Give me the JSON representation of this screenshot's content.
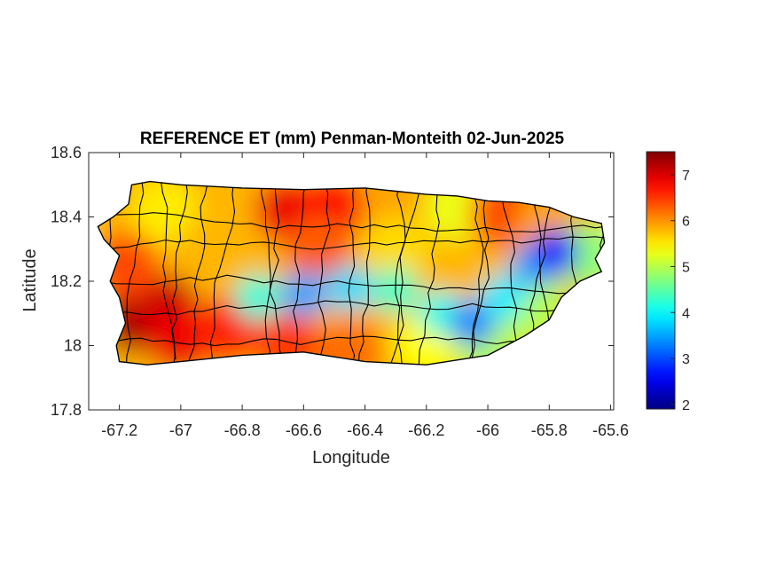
{
  "chart_data": {
    "type": "heatmap",
    "title": "REFERENCE ET (mm) Penman-Monteith 02-Jun-2025",
    "xlabel": "Longitude",
    "ylabel": "Latitude",
    "xlim": [
      -67.3,
      -65.59
    ],
    "ylim": [
      17.8,
      18.6
    ],
    "xticks": [
      -67.2,
      -67,
      -66.8,
      -66.6,
      -66.4,
      -66.2,
      -66,
      -65.8,
      -65.6
    ],
    "xtick_labels": [
      "-67.2",
      "-67",
      "-66.8",
      "-66.6",
      "-66.4",
      "-66.2",
      "-66",
      "-65.8",
      "-65.6"
    ],
    "yticks": [
      17.8,
      18,
      18.2,
      18.4,
      18.6
    ],
    "ytick_labels": [
      "17.8",
      "18",
      "18.2",
      "18.4",
      "18.6"
    ],
    "colorbar": {
      "colormap": "jet",
      "range": [
        1.9,
        7.5
      ],
      "ticks": [
        2,
        3,
        4,
        5,
        6,
        7
      ],
      "tick_labels": [
        "2",
        "3",
        "4",
        "5",
        "6",
        "7"
      ]
    },
    "coastline": [
      [
        -67.27,
        18.37
      ],
      [
        -67.22,
        18.4
      ],
      [
        -67.17,
        18.44
      ],
      [
        -67.16,
        18.5
      ],
      [
        -67.1,
        18.51
      ],
      [
        -67.0,
        18.5
      ],
      [
        -66.8,
        18.49
      ],
      [
        -66.6,
        18.485
      ],
      [
        -66.4,
        18.49
      ],
      [
        -66.3,
        18.48
      ],
      [
        -66.2,
        18.47
      ],
      [
        -66.1,
        18.465
      ],
      [
        -66.0,
        18.45
      ],
      [
        -65.9,
        18.445
      ],
      [
        -65.8,
        18.43
      ],
      [
        -65.72,
        18.4
      ],
      [
        -65.63,
        18.38
      ],
      [
        -65.62,
        18.32
      ],
      [
        -65.65,
        18.27
      ],
      [
        -65.63,
        18.23
      ],
      [
        -65.7,
        18.2
      ],
      [
        -65.76,
        18.15
      ],
      [
        -65.8,
        18.08
      ],
      [
        -65.88,
        18.03
      ],
      [
        -66.0,
        17.97
      ],
      [
        -66.2,
        17.94
      ],
      [
        -66.4,
        17.95
      ],
      [
        -66.6,
        17.98
      ],
      [
        -66.8,
        17.97
      ],
      [
        -67.0,
        17.95
      ],
      [
        -67.11,
        17.94
      ],
      [
        -67.2,
        17.95
      ],
      [
        -67.21,
        18.0
      ],
      [
        -67.18,
        18.07
      ],
      [
        -67.2,
        18.15
      ],
      [
        -67.23,
        18.2
      ],
      [
        -67.2,
        18.28
      ],
      [
        -67.25,
        18.33
      ]
    ],
    "samples": [
      {
        "lon": -67.15,
        "lat": 18.08,
        "value": 7.3
      },
      {
        "lon": -67.05,
        "lat": 18.12,
        "value": 7.1
      },
      {
        "lon": -67.0,
        "lat": 18.02,
        "value": 6.9
      },
      {
        "lon": -67.18,
        "lat": 18.25,
        "value": 6.4
      },
      {
        "lon": -67.05,
        "lat": 18.42,
        "value": 5.5
      },
      {
        "lon": -66.9,
        "lat": 18.3,
        "value": 5.8
      },
      {
        "lon": -66.85,
        "lat": 18.05,
        "value": 6.6
      },
      {
        "lon": -66.65,
        "lat": 18.42,
        "value": 6.9
      },
      {
        "lon": -66.5,
        "lat": 18.43,
        "value": 6.8
      },
      {
        "lon": -66.55,
        "lat": 18.3,
        "value": 6.3
      },
      {
        "lon": -66.65,
        "lat": 18.0,
        "value": 6.5
      },
      {
        "lon": -66.45,
        "lat": 17.98,
        "value": 6.2
      },
      {
        "lon": -66.3,
        "lat": 18.43,
        "value": 5.9
      },
      {
        "lon": -66.3,
        "lat": 18.3,
        "value": 5.6
      },
      {
        "lon": -66.1,
        "lat": 18.43,
        "value": 5.3
      },
      {
        "lon": -65.95,
        "lat": 18.41,
        "value": 6.4
      },
      {
        "lon": -65.8,
        "lat": 18.37,
        "value": 5.9
      },
      {
        "lon": -66.2,
        "lat": 18.0,
        "value": 5.4
      },
      {
        "lon": -66.0,
        "lat": 17.99,
        "value": 5.0
      },
      {
        "lon": -65.85,
        "lat": 18.12,
        "value": 5.0
      },
      {
        "lon": -65.68,
        "lat": 18.28,
        "value": 4.8
      },
      {
        "lon": -66.75,
        "lat": 18.15,
        "value": 4.2
      },
      {
        "lon": -66.6,
        "lat": 18.16,
        "value": 3.5
      },
      {
        "lon": -66.45,
        "lat": 18.18,
        "value": 3.8
      },
      {
        "lon": -66.3,
        "lat": 18.17,
        "value": 4.3
      },
      {
        "lon": -66.15,
        "lat": 18.1,
        "value": 4.1
      },
      {
        "lon": -66.05,
        "lat": 18.07,
        "value": 3.3
      },
      {
        "lon": -65.95,
        "lat": 18.15,
        "value": 3.9
      },
      {
        "lon": -65.85,
        "lat": 18.25,
        "value": 3.5
      },
      {
        "lon": -65.78,
        "lat": 18.29,
        "value": 2.6
      }
    ]
  }
}
